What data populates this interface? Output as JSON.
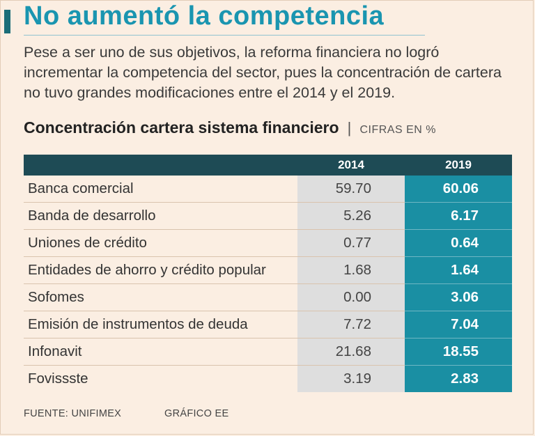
{
  "header": {
    "title": "No aumentó la competencia",
    "intro": "Pese a ser uno de sus objetivos, la reforma financiera no logró incrementar la competencia del sector, pues la concentración de cartera no tuvo grandes modificaciones entre el 2014 y el 2019."
  },
  "chart_data": {
    "type": "table",
    "title": "Concentración cartera sistema financiero",
    "unit_label": "CIFRAS EN %",
    "separator": "|",
    "columns": [
      "2014",
      "2019"
    ],
    "rows": [
      {
        "label": "Banca comercial",
        "v2014": "59.70",
        "v2019": "60.06"
      },
      {
        "label": "Banda de desarrollo",
        "v2014": "5.26",
        "v2019": "6.17"
      },
      {
        "label": "Uniones de crédito",
        "v2014": "0.77",
        "v2019": "0.64"
      },
      {
        "label": "Entidades de ahorro y crédito popular",
        "v2014": "1.68",
        "v2019": "1.64"
      },
      {
        "label": "Sofomes",
        "v2014": "0.00",
        "v2019": "3.06"
      },
      {
        "label": "Emisión de instrumentos de deuda",
        "v2014": "7.72",
        "v2019": "7.04"
      },
      {
        "label": "Infonavit",
        "v2014": "21.68",
        "v2019": "18.55"
      },
      {
        "label": "Fovissste",
        "v2014": "3.19",
        "v2019": "2.83"
      }
    ]
  },
  "footer": {
    "source": "FUENTE: UNIFIMEX",
    "credit": "GRÁFICO EE"
  },
  "colors": {
    "background": "#fbeee2",
    "title": "#1a95b0",
    "header_row": "#1e4b55",
    "col_2019": "#1a8fa3",
    "col_2014": "#dedede"
  }
}
